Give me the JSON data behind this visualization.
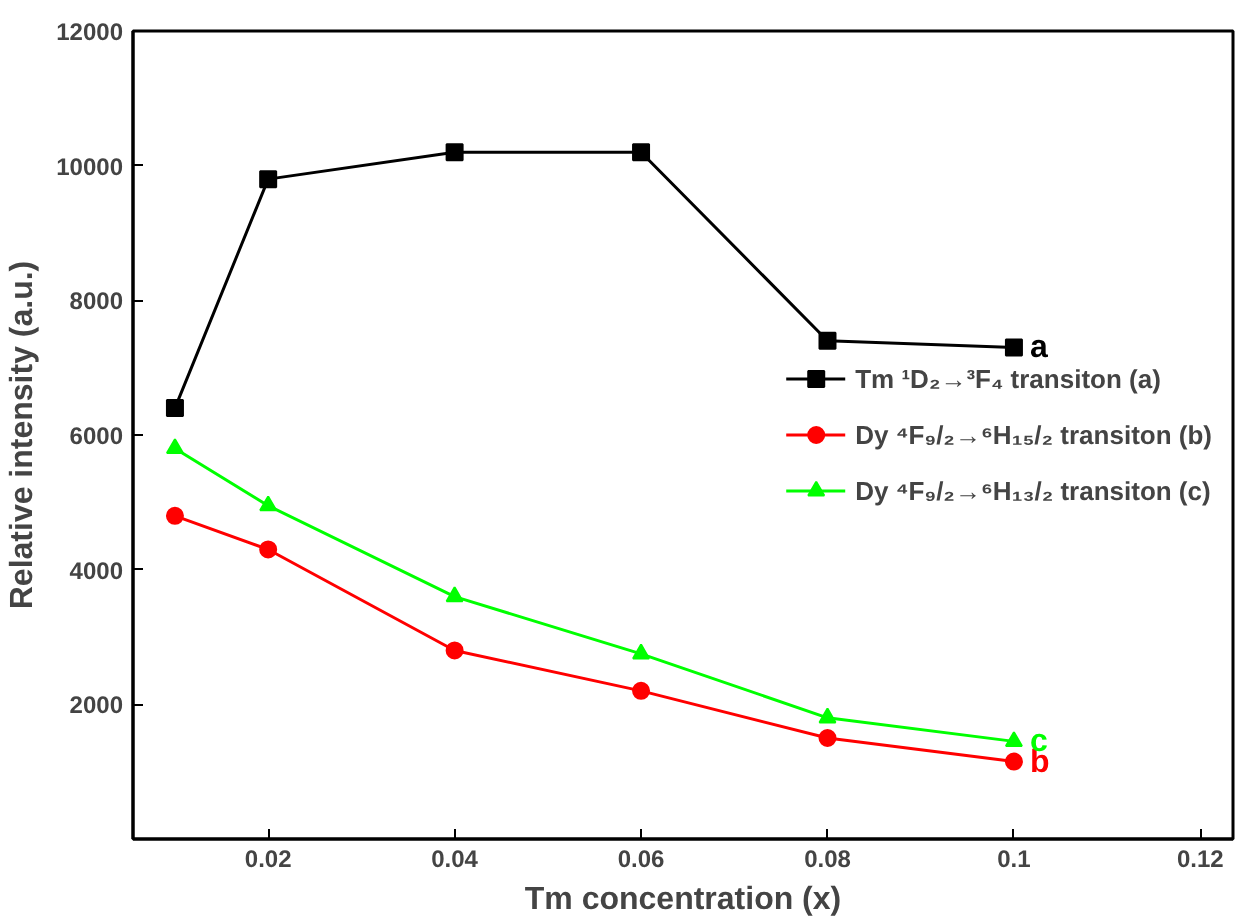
{
  "chart_data": {
    "type": "line",
    "xlabel": "Tm concentration (x)",
    "ylabel": "Relative intensity (a.u.)",
    "x": [
      0.01,
      0.02,
      0.04,
      0.06,
      0.08,
      0.1
    ],
    "series": [
      {
        "name": "Tm ¹D₂→³F₄ transiton (a)",
        "color": "#000000",
        "marker": "square",
        "values": [
          6400,
          9800,
          10200,
          10200,
          7400,
          7300
        ]
      },
      {
        "name": "Dy ⁴F₉/₂→⁶H₁₅/₂ transiton (b)",
        "color": "#ff0000",
        "marker": "circle",
        "values": [
          4800,
          4300,
          2800,
          2200,
          1500,
          1150
        ]
      },
      {
        "name": "Dy ⁴F₉/₂→⁶H₁₃/₂ transiton (c)",
        "color": "#00ff00",
        "marker": "triangle",
        "values": [
          5800,
          4950,
          3600,
          2750,
          1800,
          1450
        ]
      }
    ],
    "annotations": [
      "a",
      "b",
      "c"
    ],
    "xlim": [
      0.0055,
      0.1235
    ],
    "ylim": [
      0,
      12000
    ],
    "xticks": [
      0.02,
      0.04,
      0.06,
      0.08,
      0.1,
      0.12
    ],
    "yticks": [
      2000,
      4000,
      6000,
      8000,
      10000,
      12000
    ],
    "grid": false,
    "legend": "right",
    "line_style": "solid"
  }
}
